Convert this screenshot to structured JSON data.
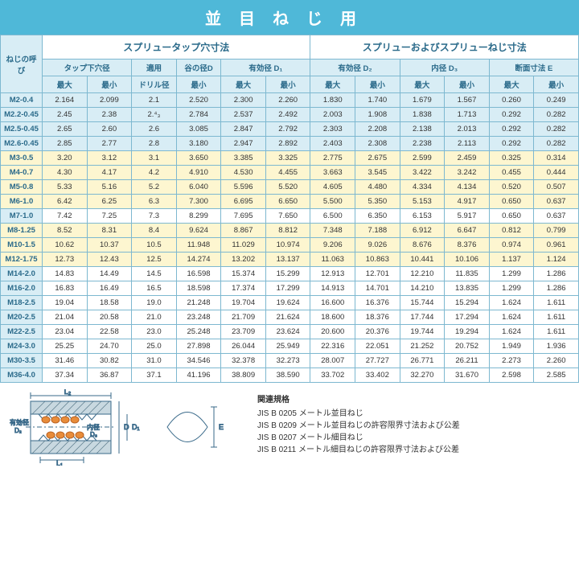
{
  "title": "並目ねじ用",
  "headers": {
    "section_left": "スプリュータップ穴寸法",
    "section_right": "スプリューおよびスプリューねじ寸法",
    "row_label": "ねじの呼び",
    "group1": "タップ下穴径",
    "group2": "適用",
    "group2b": "ドリル径",
    "group3": "谷の径D",
    "group3b": "最小",
    "group4": "有効径 D₁",
    "group5": "有効径 D₂",
    "group6": "内径 D₃",
    "group7": "断面寸法 E",
    "max": "最大",
    "min": "最小"
  },
  "rows": [
    {
      "c": "blue",
      "label": "M2-0.4",
      "v": [
        "2.164",
        "2.099",
        "2.1",
        "2.520",
        "2.300",
        "2.260",
        "1.830",
        "1.740",
        "1.679",
        "1.567",
        "0.260",
        "0.249"
      ]
    },
    {
      "c": "blue",
      "label": "M2.2-0.45",
      "v": [
        "2.45",
        "2.38",
        "2.⁴₃",
        "2.784",
        "2.537",
        "2.492",
        "2.003",
        "1.908",
        "1.838",
        "1.713",
        "0.292",
        "0.282"
      ]
    },
    {
      "c": "blue",
      "label": "M2.5-0.45",
      "v": [
        "2.65",
        "2.60",
        "2.6",
        "3.085",
        "2.847",
        "2.792",
        "2.303",
        "2.208",
        "2.138",
        "2.013",
        "0.292",
        "0.282"
      ]
    },
    {
      "c": "blue",
      "label": "M2.6-0.45",
      "v": [
        "2.85",
        "2.77",
        "2.8",
        "3.180",
        "2.947",
        "2.892",
        "2.403",
        "2.308",
        "2.238",
        "2.113",
        "0.292",
        "0.282"
      ]
    },
    {
      "c": "yellow",
      "label": "M3-0.5",
      "v": [
        "3.20",
        "3.12",
        "3.1",
        "3.650",
        "3.385",
        "3.325",
        "2.775",
        "2.675",
        "2.599",
        "2.459",
        "0.325",
        "0.314"
      ]
    },
    {
      "c": "yellow",
      "label": "M4-0.7",
      "v": [
        "4.30",
        "4.17",
        "4.2",
        "4.910",
        "4.530",
        "4.455",
        "3.663",
        "3.545",
        "3.422",
        "3.242",
        "0.455",
        "0.444"
      ]
    },
    {
      "c": "yellow",
      "label": "M5-0.8",
      "v": [
        "5.33",
        "5.16",
        "5.2",
        "6.040",
        "5.596",
        "5.520",
        "4.605",
        "4.480",
        "4.334",
        "4.134",
        "0.520",
        "0.507"
      ]
    },
    {
      "c": "yellow",
      "label": "M6-1.0",
      "v": [
        "6.42",
        "6.25",
        "6.3",
        "7.300",
        "6.695",
        "6.650",
        "5.500",
        "5.350",
        "5.153",
        "4.917",
        "0.650",
        "0.637"
      ]
    },
    {
      "c": "white",
      "label": "M7-1.0",
      "v": [
        "7.42",
        "7.25",
        "7.3",
        "8.299",
        "7.695",
        "7.650",
        "6.500",
        "6.350",
        "6.153",
        "5.917",
        "0.650",
        "0.637"
      ]
    },
    {
      "c": "yellow",
      "label": "M8-1.25",
      "v": [
        "8.52",
        "8.31",
        "8.4",
        "9.624",
        "8.867",
        "8.812",
        "7.348",
        "7.188",
        "6.912",
        "6.647",
        "0.812",
        "0.799"
      ]
    },
    {
      "c": "yellow",
      "label": "M10-1.5",
      "v": [
        "10.62",
        "10.37",
        "10.5",
        "11.948",
        "11.029",
        "10.974",
        "9.206",
        "9.026",
        "8.676",
        "8.376",
        "0.974",
        "0.961"
      ]
    },
    {
      "c": "yellow",
      "label": "M12-1.75",
      "v": [
        "12.73",
        "12.43",
        "12.5",
        "14.274",
        "13.202",
        "13.137",
        "11.063",
        "10.863",
        "10.441",
        "10.106",
        "1.137",
        "1.124"
      ]
    },
    {
      "c": "white",
      "label": "M14-2.0",
      "v": [
        "14.83",
        "14.49",
        "14.5",
        "16.598",
        "15.374",
        "15.299",
        "12.913",
        "12.701",
        "12.210",
        "11.835",
        "1.299",
        "1.286"
      ]
    },
    {
      "c": "white",
      "label": "M16-2.0",
      "v": [
        "16.83",
        "16.49",
        "16.5",
        "18.598",
        "17.374",
        "17.299",
        "14.913",
        "14.701",
        "14.210",
        "13.835",
        "1.299",
        "1.286"
      ]
    },
    {
      "c": "white",
      "label": "M18-2.5",
      "v": [
        "19.04",
        "18.58",
        "19.0",
        "21.248",
        "19.704",
        "19.624",
        "16.600",
        "16.376",
        "15.744",
        "15.294",
        "1.624",
        "1.611"
      ]
    },
    {
      "c": "white",
      "label": "M20-2.5",
      "v": [
        "21.04",
        "20.58",
        "21.0",
        "23.248",
        "21.709",
        "21.624",
        "18.600",
        "18.376",
        "17.744",
        "17.294",
        "1.624",
        "1.611"
      ]
    },
    {
      "c": "white",
      "label": "M22-2.5",
      "v": [
        "23.04",
        "22.58",
        "23.0",
        "25.248",
        "23.709",
        "23.624",
        "20.600",
        "20.376",
        "19.744",
        "19.294",
        "1.624",
        "1.611"
      ]
    },
    {
      "c": "white",
      "label": "M24-3.0",
      "v": [
        "25.25",
        "24.70",
        "25.0",
        "27.898",
        "26.044",
        "25.949",
        "22.316",
        "22.051",
        "21.252",
        "20.752",
        "1.949",
        "1.936"
      ]
    },
    {
      "c": "white",
      "label": "M30-3.5",
      "v": [
        "31.46",
        "30.82",
        "31.0",
        "34.546",
        "32.378",
        "32.273",
        "28.007",
        "27.727",
        "26.771",
        "26.211",
        "2.273",
        "2.260"
      ]
    },
    {
      "c": "white",
      "label": "M36-4.0",
      "v": [
        "37.34",
        "36.87",
        "37.1",
        "41.196",
        "38.809",
        "38.590",
        "33.702",
        "33.402",
        "32.270",
        "31.670",
        "2.598",
        "2.585"
      ]
    }
  ],
  "standards": {
    "title": "関連規格",
    "items": [
      "JIS  B  0205  メートル並目ねじ",
      "JIS  B  0209  メートル並目ねじの許容限界寸法および公差",
      "JIS  B  0207  メートル細目ねじ",
      "JIS  B  0211  メートル細目ねじの許容限界寸法および公差"
    ]
  },
  "diagram": {
    "labels": [
      "L₂",
      "D",
      "D₁",
      "L₁",
      "有効径D₂",
      "内径D₃",
      "E"
    ],
    "colors": {
      "hatch": "#5a7a8a",
      "coil": "#e88c3a",
      "line": "#3a6a8a",
      "bg": "#ffffff"
    }
  }
}
